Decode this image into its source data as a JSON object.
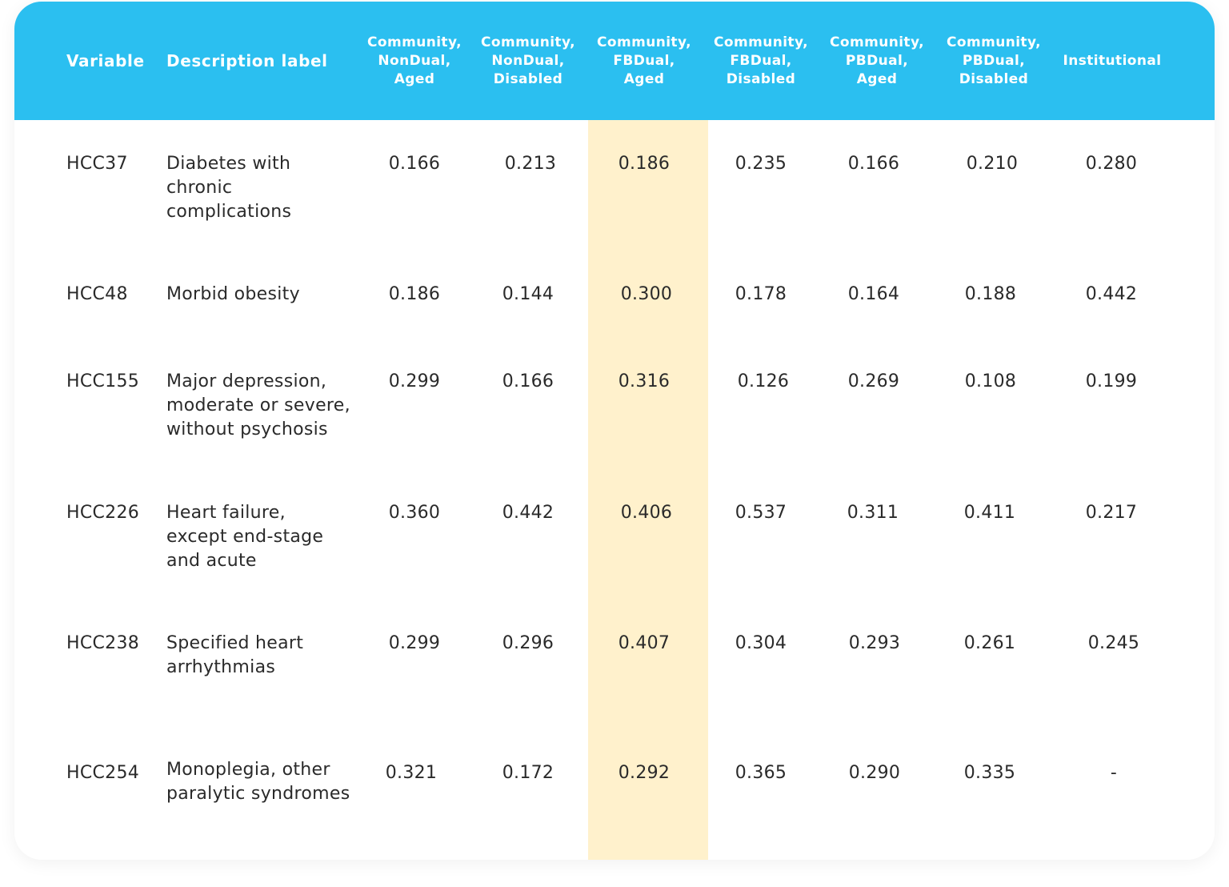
{
  "columns": {
    "variable": "Variable",
    "description": "Description label",
    "groups": [
      [
        "Community,",
        "NonDual,",
        "Aged"
      ],
      [
        "Community,",
        "NonDual,",
        "Disabled"
      ],
      [
        "Community,",
        "FBDual,",
        "Aged"
      ],
      [
        "Community,",
        "FBDual,",
        "Disabled"
      ],
      [
        "Community,",
        "PBDual,",
        "Aged"
      ],
      [
        "Community,",
        "PBDual,",
        "Disabled"
      ],
      [
        "Institutional"
      ]
    ]
  },
  "highlight_color": "#fff1cc",
  "header_color": "#2bbff0",
  "rows": [
    {
      "variable": "HCC37",
      "description": "Diabetes with chronic complications",
      "values": [
        "0.166",
        "0.213",
        "0.186",
        "0.235",
        "0.166",
        "0.210",
        "0.280"
      ]
    },
    {
      "variable": "HCC48",
      "description": "Morbid obesity",
      "values": [
        "0.186",
        "0.144",
        "0.300",
        "0.178",
        "0.164",
        "0.188",
        "0.442"
      ]
    },
    {
      "variable": "HCC155",
      "description": "Major depression, moderate or severe, without psychosis",
      "values": [
        "0.299",
        "0.166",
        "0.316",
        "0.126",
        "0.269",
        "0.108",
        "0.199"
      ]
    },
    {
      "variable": "HCC226",
      "description": "Heart failure, except end-stage and acute",
      "values": [
        "0.360",
        "0.442",
        "0.406",
        "0.537",
        "0.311",
        "0.411",
        "0.217"
      ]
    },
    {
      "variable": "HCC238",
      "description": "Specified heart arrhythmias",
      "values": [
        "0.299",
        "0.296",
        "0.407",
        "0.304",
        "0.293",
        "0.261",
        "0.245"
      ]
    },
    {
      "variable": "HCC254",
      "description": "Monoplegia, other paralytic syndromes",
      "values": [
        "0.321",
        "0.172",
        "0.292",
        "0.365",
        "0.290",
        "0.335",
        "-"
      ]
    }
  ]
}
